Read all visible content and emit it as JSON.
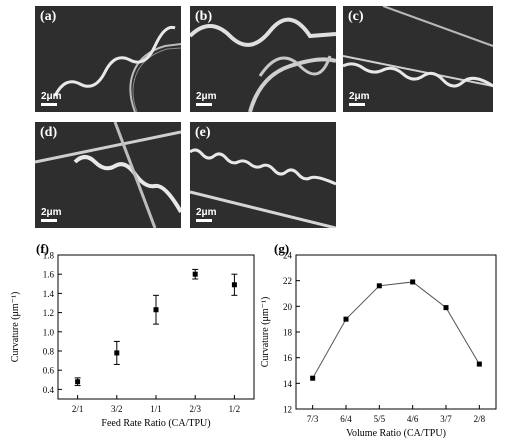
{
  "panels": [
    {
      "label": "(a)",
      "scale": "2μm"
    },
    {
      "label": "(b)",
      "scale": "2μm"
    },
    {
      "label": "(c)",
      "scale": "2μm"
    },
    {
      "label": "(d)",
      "scale": "2μm"
    },
    {
      "label": "(e)",
      "scale": "2μm"
    }
  ],
  "chart_data": [
    {
      "panel_label": "(f)",
      "type": "scatter",
      "xlabel": "Feed Rate Ratio (CA/TPU)",
      "ylabel": "Curvature (μm⁻¹)",
      "categories": [
        "2/1",
        "3/2",
        "1/1",
        "2/3",
        "1/2"
      ],
      "values": [
        0.48,
        0.78,
        1.23,
        1.6,
        1.49
      ],
      "errors": [
        0.04,
        0.12,
        0.15,
        0.05,
        0.11
      ],
      "ylim": [
        0.3,
        1.8
      ],
      "yticks": [
        "0.4",
        "0.6",
        "0.8",
        "1.0",
        "1.2",
        "1.4",
        "1.6",
        "1.8"
      ],
      "error_bars": true,
      "grid": false
    },
    {
      "panel_label": "(g)",
      "type": "line",
      "xlabel": "Volume Ratio (CA/TPU)",
      "ylabel": "Curvature (μm⁻¹)",
      "categories": [
        "7/3",
        "6/4",
        "5/5",
        "4/6",
        "3/7",
        "2/8"
      ],
      "values": [
        14.4,
        19.0,
        21.6,
        21.9,
        19.9,
        15.5
      ],
      "ylim": [
        12,
        24
      ],
      "yticks": [
        "12",
        "14",
        "16",
        "18",
        "20",
        "22",
        "24"
      ],
      "markers": true,
      "grid": false
    }
  ]
}
